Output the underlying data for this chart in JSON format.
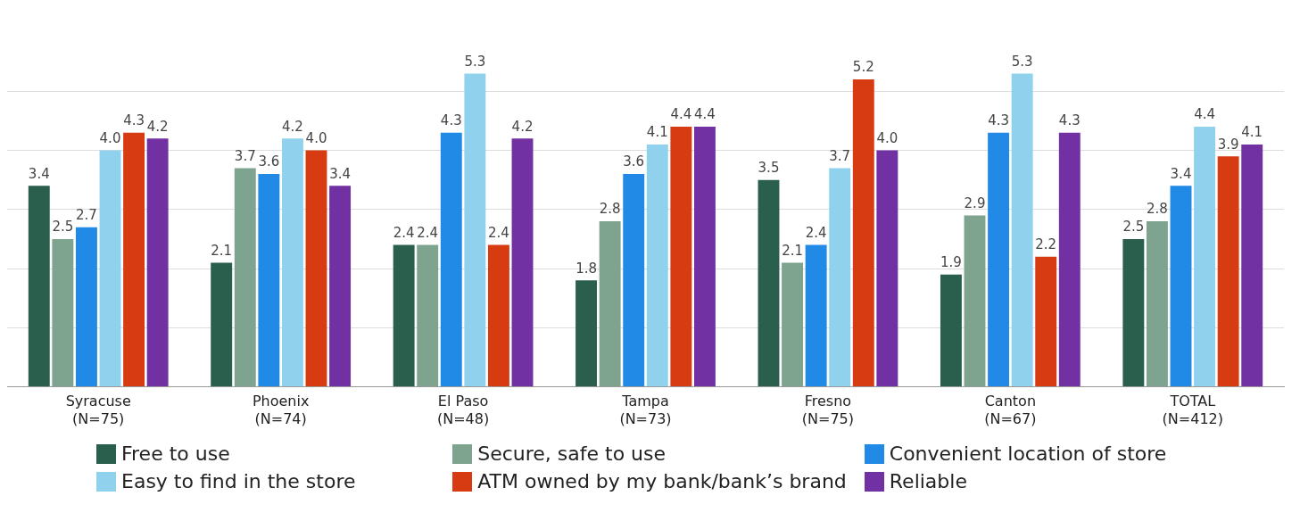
{
  "chart_data": {
    "type": "bar",
    "categories": [
      "Syracuse (N=75)",
      "Phoenix (N=74)",
      "El Paso (N=48)",
      "Tampa (N=73)",
      "Fresno (N=75)",
      "Canton (N=67)",
      "TOTAL (N=412)"
    ],
    "series": [
      {
        "name": "Free to use",
        "color": "#2a5e4d",
        "values": [
          3.4,
          2.1,
          2.4,
          1.8,
          3.5,
          1.9,
          2.5
        ]
      },
      {
        "name": "Secure, safe to use",
        "color": "#7ea38f",
        "values": [
          2.5,
          3.7,
          2.4,
          2.8,
          2.1,
          2.9,
          2.8
        ]
      },
      {
        "name": "Convenient location of store",
        "color": "#2189e6",
        "values": [
          2.7,
          3.6,
          4.3,
          3.6,
          2.4,
          4.3,
          3.4
        ]
      },
      {
        "name": "Easy to find in the store",
        "color": "#90d2ee",
        "values": [
          4,
          4.2,
          5.3,
          4.1,
          3.7,
          5.3,
          4.4
        ],
        "value_labels": [
          "4.0",
          "4.2",
          "5.3",
          "4.1",
          "3.7",
          "5.3",
          "4.4"
        ]
      },
      {
        "name": "ATM owned by my bank/bank’s brand",
        "color": "#d73b12",
        "values": [
          4.3,
          4,
          2.4,
          4.4,
          5.2,
          2.2,
          3.9
        ],
        "value_labels": [
          "4.3",
          "4.0",
          "2.4",
          "4.4",
          "5.2",
          "2.2",
          "3.9"
        ]
      },
      {
        "name": "Reliable",
        "color": "#7231a3",
        "values": [
          4.2,
          3.4,
          4.2,
          4.4,
          4,
          4.3,
          4.1
        ],
        "value_labels": [
          "4.2",
          "3.4",
          "4.2",
          "4.4",
          "4.0",
          "4.3",
          "4.1"
        ]
      }
    ],
    "yticks": [
      {
        "value": 0,
        "label": null
      },
      {
        "value": 1,
        "label": null
      },
      {
        "value": 2,
        "label": null
      },
      {
        "value": 3,
        "label": null
      },
      {
        "value": 4,
        "label": null
      },
      {
        "value": 5,
        "label": null
      }
    ],
    "tick_labels": "x",
    "grid": "y",
    "data_labels": true,
    "legend": "bottom"
  }
}
